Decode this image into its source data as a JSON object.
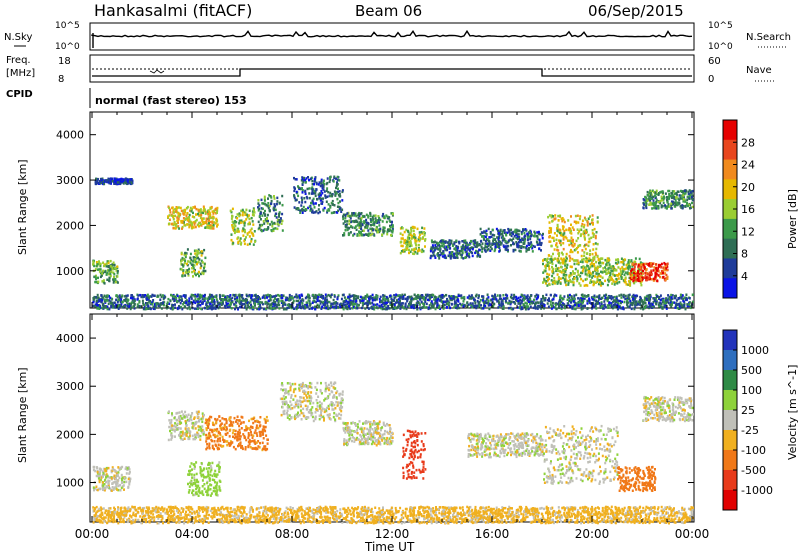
{
  "header": {
    "station": "Hankasalmi (fitACF)",
    "beam": "Beam 06",
    "date": "06/Sep/2015"
  },
  "top_strip": {
    "left_label": "N.Sky",
    "right_label": "N.Search",
    "left_ticks": [
      "10^5",
      "10^0"
    ],
    "right_ticks": [
      "10^5",
      "10^0"
    ]
  },
  "freq_strip": {
    "left_label_1": "Freq.",
    "left_label_2": "[MHz]",
    "right_label": "Nave",
    "left_ticks": [
      "18",
      "8"
    ],
    "right_ticks": [
      "60",
      "0"
    ]
  },
  "cpid": {
    "label": "CPID",
    "value": "normal (fast stereo) 153"
  },
  "colors": {
    "power": [
      "#0a14e6",
      "#1f3c9a",
      "#2f6e55",
      "#3c9a4a",
      "#9acd32",
      "#e6b800",
      "#f08a1e",
      "#e8461e",
      "#e60000"
    ],
    "velocity": [
      "#2233bb",
      "#2e6fbf",
      "#2e8a45",
      "#8ed23a",
      "#c0c0b8",
      "#f0b020",
      "#f07818",
      "#e83a1a",
      "#e00000"
    ]
  },
  "chart_data": [
    {
      "type": "heatmap",
      "title": "",
      "xlabel": "Time UT",
      "ylabel": "Slant Range [km]",
      "xlim": [
        "00:00",
        "24:00"
      ],
      "ylim": [
        180,
        4500
      ],
      "x_ticks": [
        "00:00",
        "04:00",
        "08:00",
        "12:00",
        "16:00",
        "20:00",
        "00:00"
      ],
      "y_ticks": [
        "1000",
        "2000",
        "3000",
        "4000"
      ],
      "colorbar": {
        "label": "Power [dB]",
        "ticks": [
          "4",
          "8",
          "12",
          "16",
          "20",
          "24",
          "28"
        ],
        "range": [
          0,
          30
        ]
      },
      "scatter_bands": [
        {
          "t": 0.0,
          "r": 1000,
          "w": 1.0,
          "h": 250,
          "level": 0.4
        },
        {
          "t": 0.1,
          "r": 3000,
          "w": 1.5,
          "h": 60,
          "level": 0.1
        },
        {
          "t": 3.0,
          "r": 2200,
          "w": 2.0,
          "h": 250,
          "level": 0.6
        },
        {
          "t": 3.5,
          "r": 1200,
          "w": 1.0,
          "h": 300,
          "level": 0.4
        },
        {
          "t": 5.5,
          "r": 2000,
          "w": 1.0,
          "h": 400,
          "level": 0.5
        },
        {
          "t": 6.6,
          "r": 2300,
          "w": 1.0,
          "h": 400,
          "level": 0.3
        },
        {
          "t": 8.0,
          "r": 2700,
          "w": 2.0,
          "h": 400,
          "level": 0.2
        },
        {
          "t": 10.0,
          "r": 2050,
          "w": 2.0,
          "h": 250,
          "level": 0.3
        },
        {
          "t": 12.3,
          "r": 1700,
          "w": 1.0,
          "h": 300,
          "level": 0.5
        },
        {
          "t": 13.5,
          "r": 1500,
          "w": 2.0,
          "h": 200,
          "level": 0.2
        },
        {
          "t": 15.5,
          "r": 1700,
          "w": 2.5,
          "h": 250,
          "level": 0.2
        },
        {
          "t": 18.2,
          "r": 1750,
          "w": 2.0,
          "h": 500,
          "level": 0.6
        },
        {
          "t": 18.0,
          "r": 1000,
          "w": 4.0,
          "h": 300,
          "level": 0.5
        },
        {
          "t": 21.5,
          "r": 1000,
          "w": 1.5,
          "h": 200,
          "level": 0.9
        },
        {
          "t": 22.0,
          "r": 2600,
          "w": 2.0,
          "h": 200,
          "level": 0.3
        },
        {
          "t": 0.0,
          "r": 300,
          "w": 24.0,
          "h": 200,
          "level": 0.2
        }
      ]
    },
    {
      "type": "heatmap",
      "title": "",
      "xlabel": "Time UT",
      "ylabel": "Slant Range [km]",
      "xlim": [
        "00:00",
        "24:00"
      ],
      "ylim": [
        180,
        4500
      ],
      "x_ticks": [
        "00:00",
        "04:00",
        "08:00",
        "12:00",
        "16:00",
        "20:00",
        "00:00"
      ],
      "y_ticks": [
        "1000",
        "2000",
        "3000",
        "4000"
      ],
      "colorbar": {
        "label": "Velocity [m s^-1]",
        "ticks": [
          "1000",
          "500",
          "100",
          "25",
          "-25",
          "-100",
          "-500",
          "-1000"
        ]
      },
      "scatter_bands": [
        {
          "t": 0.0,
          "r": 1100,
          "w": 1.5,
          "h": 250,
          "v": 0
        },
        {
          "t": 3.0,
          "r": 2200,
          "w": 1.5,
          "h": 300,
          "v": 0
        },
        {
          "t": 3.8,
          "r": 1100,
          "w": 1.3,
          "h": 350,
          "v": 60
        },
        {
          "t": 4.5,
          "r": 2050,
          "w": 2.5,
          "h": 350,
          "v": -120
        },
        {
          "t": 7.5,
          "r": 2700,
          "w": 2.5,
          "h": 400,
          "v": 0
        },
        {
          "t": 10.0,
          "r": 2050,
          "w": 2.0,
          "h": 250,
          "v": 0
        },
        {
          "t": 12.4,
          "r": 1600,
          "w": 0.9,
          "h": 500,
          "v": -600
        },
        {
          "t": 15.0,
          "r": 1800,
          "w": 3.0,
          "h": 250,
          "v": 0
        },
        {
          "t": 18.0,
          "r": 1600,
          "w": 3.0,
          "h": 600,
          "v": 0
        },
        {
          "t": 21.0,
          "r": 1100,
          "w": 1.5,
          "h": 250,
          "v": -150
        },
        {
          "t": 22.0,
          "r": 2550,
          "w": 2.0,
          "h": 250,
          "v": 0
        },
        {
          "t": 0.0,
          "r": 320,
          "w": 24.0,
          "h": 200,
          "v": -50
        }
      ]
    }
  ]
}
